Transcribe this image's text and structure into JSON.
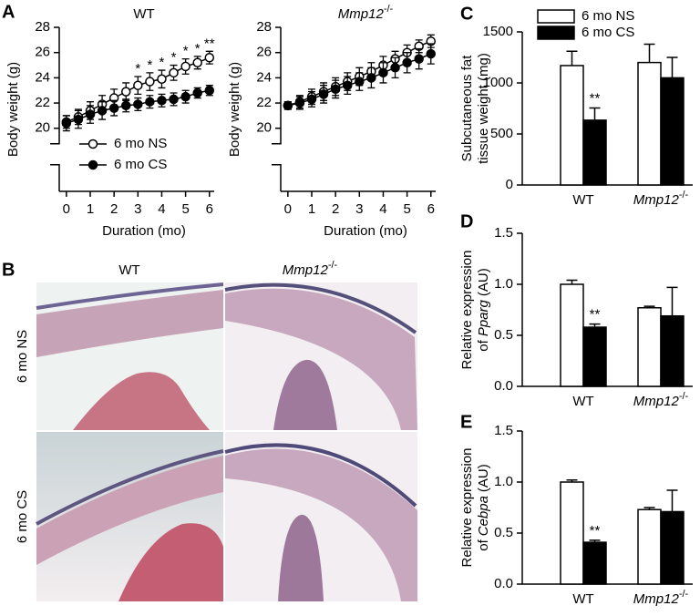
{
  "panel_labels": [
    "A",
    "B",
    "C",
    "D",
    "E"
  ],
  "genotype_sup": "-/-",
  "histology": {
    "columns": [
      "WT",
      "Mmp12"
    ],
    "rows": [
      "6 mo NS",
      "6 mo CS"
    ]
  },
  "chart_data": [
    {
      "type": "line",
      "title": "WT",
      "xlabel": "Duration (mo)",
      "ylabel": "Body weight (g)",
      "x": [
        0,
        0.5,
        1,
        1.5,
        2,
        2.5,
        3,
        3.5,
        4,
        4.5,
        5,
        5.5,
        6
      ],
      "xlim": [
        -0.3,
        6.2
      ],
      "xticks": [
        0,
        1,
        2,
        3,
        4,
        5,
        6
      ],
      "ylim": [
        15,
        28
      ],
      "yticks": [
        20,
        22,
        24,
        26,
        28
      ],
      "series": [
        {
          "name": "6 mo NS",
          "color": "#000000",
          "marker": "open",
          "values": [
            20.5,
            20.9,
            21.4,
            21.9,
            22.4,
            22.9,
            23.4,
            23.7,
            23.9,
            24.4,
            24.9,
            25.2,
            25.6
          ],
          "errors": [
            0.5,
            0.6,
            0.7,
            0.7,
            0.7,
            0.7,
            0.7,
            0.7,
            0.7,
            0.6,
            0.6,
            0.5,
            0.5
          ]
        },
        {
          "name": "6 mo CS",
          "color": "#000000",
          "marker": "filled",
          "values": [
            20.4,
            20.7,
            21.1,
            21.4,
            21.6,
            21.8,
            21.9,
            22.1,
            22.2,
            22.3,
            22.5,
            22.8,
            23.0
          ],
          "errors": [
            0.6,
            0.7,
            0.7,
            0.7,
            0.6,
            0.5,
            0.5,
            0.5,
            0.5,
            0.5,
            0.5,
            0.4,
            0.4
          ]
        }
      ],
      "legend": "lower left",
      "annotations": [
        {
          "x": 3,
          "text": "*"
        },
        {
          "x": 3.5,
          "text": "*"
        },
        {
          "x": 4,
          "text": "*"
        },
        {
          "x": 4.5,
          "text": "*"
        },
        {
          "x": 5,
          "text": "*"
        },
        {
          "x": 5.5,
          "text": "*"
        },
        {
          "x": 6,
          "text": "**"
        }
      ]
    },
    {
      "type": "line",
      "title": "Mmp12",
      "title_sup": true,
      "xlabel": "Duration (mo)",
      "ylabel": "Body weight (g)",
      "x": [
        0,
        0.5,
        1,
        1.5,
        2,
        2.5,
        3,
        3.5,
        4,
        4.5,
        5,
        5.5,
        6
      ],
      "xlim": [
        -0.3,
        6.2
      ],
      "xticks": [
        0,
        1,
        2,
        3,
        4,
        5,
        6
      ],
      "ylim": [
        15,
        28
      ],
      "yticks": [
        20,
        22,
        24,
        26,
        28
      ],
      "series": [
        {
          "color": "#000000",
          "marker": "open",
          "values": [
            21.8,
            22.1,
            22.5,
            22.9,
            23.3,
            23.7,
            24.1,
            24.5,
            25.0,
            25.5,
            26.0,
            26.5,
            26.9
          ],
          "errors": [
            0.3,
            0.5,
            0.6,
            0.7,
            0.7,
            0.7,
            0.7,
            0.7,
            0.7,
            0.6,
            0.6,
            0.5,
            0.5
          ]
        },
        {
          "color": "#000000",
          "marker": "filled",
          "values": [
            21.8,
            22.0,
            22.3,
            22.7,
            23.1,
            23.4,
            23.7,
            24.0,
            24.4,
            24.8,
            25.2,
            25.5,
            25.9
          ],
          "errors": [
            0.3,
            0.5,
            0.6,
            0.7,
            0.7,
            0.7,
            0.7,
            0.8,
            0.8,
            0.8,
            0.8,
            0.8,
            0.8
          ]
        }
      ]
    },
    {
      "type": "bar",
      "categories": [
        "WT",
        "Mmp12"
      ],
      "sup_categories": [
        1
      ],
      "ylabel": "Subcutaneous fat",
      "ylabel2": "tissue weight (mg)",
      "ylim": [
        0,
        1500
      ],
      "yticks": [
        0,
        500,
        1000,
        1500
      ],
      "series": [
        {
          "name": "6 mo NS",
          "color": "#ffffff",
          "values": [
            1170,
            1200
          ],
          "errors": [
            140,
            180
          ]
        },
        {
          "name": "6 mo CS",
          "color": "#000000",
          "values": [
            635,
            1050
          ],
          "errors": [
            120,
            200
          ]
        }
      ],
      "legend": "upper left",
      "annotations": [
        {
          "category": 0,
          "series": 1,
          "text": "**"
        }
      ]
    },
    {
      "type": "bar",
      "categories": [
        "WT",
        "Mmp12"
      ],
      "sup_categories": [
        1
      ],
      "ylabel": "Relative expression",
      "ylabel_prefix": "of",
      "ylabel_gene": "Pparg",
      "ylabel_suffix": "(AU)",
      "ylim": [
        0,
        1.5
      ],
      "yticks": [
        {
          "value": 0,
          "label": "0.0"
        },
        {
          "value": 0.5,
          "label": "0.5"
        },
        {
          "value": 1,
          "label": "1.0"
        },
        {
          "value": 1.5,
          "label": "1.5"
        }
      ],
      "series": [
        {
          "color": "#ffffff",
          "values": [
            1.0,
            0.77
          ],
          "errors": [
            0.04,
            0.015
          ]
        },
        {
          "color": "#000000",
          "values": [
            0.58,
            0.69
          ],
          "errors": [
            0.03,
            0.28
          ]
        }
      ],
      "annotations": [
        {
          "category": 0,
          "series": 1,
          "text": "**"
        }
      ]
    },
    {
      "type": "bar",
      "categories": [
        "WT",
        "Mmp12"
      ],
      "sup_categories": [
        1
      ],
      "ylabel": "Relative expression",
      "ylabel_prefix": "of",
      "ylabel_gene": "Cebpa",
      "ylabel_suffix": "(AU)",
      "ylim": [
        0,
        1.5
      ],
      "yticks": [
        {
          "value": 0,
          "label": "0.0"
        },
        {
          "value": 0.5,
          "label": "0.5"
        },
        {
          "value": 1,
          "label": "1.0"
        },
        {
          "value": 1.5,
          "label": "1.5"
        }
      ],
      "series": [
        {
          "color": "#ffffff",
          "values": [
            1.0,
            0.73
          ],
          "errors": [
            0.02,
            0.02
          ]
        },
        {
          "color": "#000000",
          "values": [
            0.41,
            0.71
          ],
          "errors": [
            0.02,
            0.21
          ]
        }
      ],
      "annotations": [
        {
          "category": 0,
          "series": 1,
          "text": "**"
        }
      ]
    }
  ]
}
